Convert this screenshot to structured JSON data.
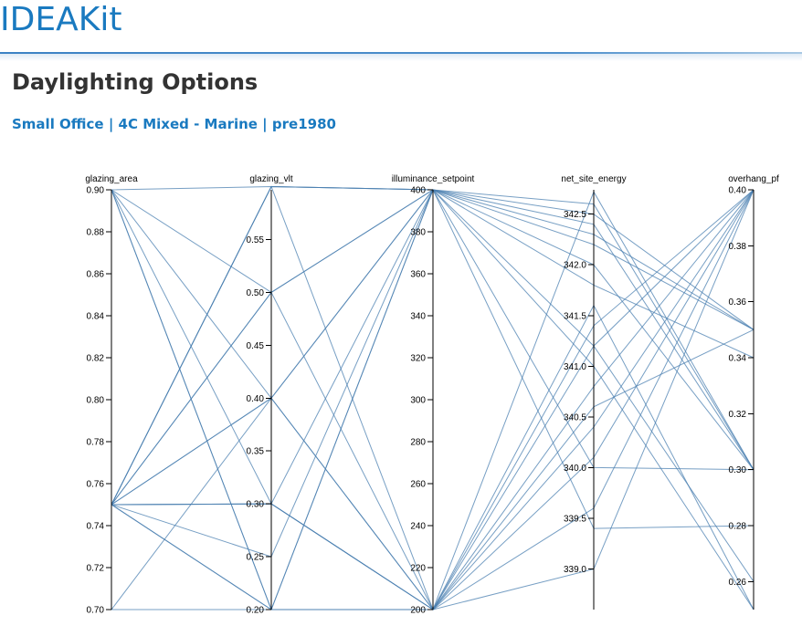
{
  "header": {
    "brand": "IDEAKit"
  },
  "page": {
    "title": "Daylighting Options",
    "subtitle": "Small Office | 4C Mixed - Marine | pre1980"
  },
  "colors": {
    "brand": "#1a7ac0",
    "line": "#4a7fb0",
    "title": "#333333"
  },
  "chart_data": {
    "type": "parallel_coordinates",
    "dimensions": [
      {
        "name": "glazing_area",
        "domain": [
          0.7,
          0.9
        ],
        "ticks": [
          {
            "v": 0.7,
            "label": "0.70"
          },
          {
            "v": 0.72,
            "label": "0.72"
          },
          {
            "v": 0.74,
            "label": "0.74"
          },
          {
            "v": 0.76,
            "label": "0.76"
          },
          {
            "v": 0.78,
            "label": "0.78"
          },
          {
            "v": 0.8,
            "label": "0.80"
          },
          {
            "v": 0.82,
            "label": "0.82"
          },
          {
            "v": 0.84,
            "label": "0.84"
          },
          {
            "v": 0.86,
            "label": "0.86"
          },
          {
            "v": 0.88,
            "label": "0.88"
          },
          {
            "v": 0.9,
            "label": "0.90"
          }
        ]
      },
      {
        "name": "glazing_vlt",
        "domain": [
          0.2,
          0.597
        ],
        "ticks": [
          {
            "v": 0.2,
            "label": "0.20"
          },
          {
            "v": 0.25,
            "label": "0.25"
          },
          {
            "v": 0.3,
            "label": "0.30"
          },
          {
            "v": 0.35,
            "label": "0.35"
          },
          {
            "v": 0.4,
            "label": "0.40"
          },
          {
            "v": 0.45,
            "label": "0.45"
          },
          {
            "v": 0.5,
            "label": "0.50"
          },
          {
            "v": 0.55,
            "label": "0.55"
          }
        ]
      },
      {
        "name": "illuminance_setpoint",
        "domain": [
          200,
          400
        ],
        "ticks": [
          {
            "v": 200,
            "label": "200"
          },
          {
            "v": 220,
            "label": "220"
          },
          {
            "v": 240,
            "label": "240"
          },
          {
            "v": 260,
            "label": "260"
          },
          {
            "v": 280,
            "label": "280"
          },
          {
            "v": 300,
            "label": "300"
          },
          {
            "v": 320,
            "label": "320"
          },
          {
            "v": 340,
            "label": "340"
          },
          {
            "v": 360,
            "label": "360"
          },
          {
            "v": 380,
            "label": "380"
          },
          {
            "v": 400,
            "label": "400"
          }
        ]
      },
      {
        "name": "net_site_energy",
        "domain": [
          338.6,
          342.74
        ],
        "ticks": [
          {
            "v": 339.0,
            "label": "339.0"
          },
          {
            "v": 339.5,
            "label": "339.5"
          },
          {
            "v": 340.0,
            "label": "340.0"
          },
          {
            "v": 340.5,
            "label": "340.5"
          },
          {
            "v": 341.0,
            "label": "341.0"
          },
          {
            "v": 341.5,
            "label": "341.5"
          },
          {
            "v": 342.0,
            "label": "342.0"
          },
          {
            "v": 342.5,
            "label": "342.5"
          }
        ]
      },
      {
        "name": "overhang_pf",
        "domain": [
          0.25,
          0.4
        ],
        "ticks": [
          {
            "v": 0.26,
            "label": "0.26"
          },
          {
            "v": 0.28,
            "label": "0.28"
          },
          {
            "v": 0.3,
            "label": "0.30"
          },
          {
            "v": 0.32,
            "label": "0.32"
          },
          {
            "v": 0.34,
            "label": "0.34"
          },
          {
            "v": 0.36,
            "label": "0.36"
          },
          {
            "v": 0.38,
            "label": "0.38"
          },
          {
            "v": 0.4,
            "label": "0.40"
          }
        ]
      }
    ],
    "records": [
      [
        0.9,
        0.3,
        200,
        342.72,
        0.3
      ],
      [
        0.9,
        0.2,
        200,
        341.6,
        0.25
      ],
      [
        0.9,
        0.6,
        400,
        342.5,
        0.35
      ],
      [
        0.75,
        0.2,
        200,
        341.2,
        0.4
      ],
      [
        0.75,
        0.25,
        400,
        342.6,
        0.3
      ],
      [
        0.75,
        0.3,
        200,
        340.8,
        0.4
      ],
      [
        0.75,
        0.4,
        400,
        342.3,
        0.35
      ],
      [
        0.75,
        0.5,
        200,
        340.4,
        0.4
      ],
      [
        0.75,
        0.6,
        400,
        341.0,
        0.25
      ],
      [
        0.75,
        0.2,
        400,
        342.4,
        0.3
      ],
      [
        0.75,
        0.6,
        200,
        340.1,
        0.4
      ],
      [
        0.75,
        0.3,
        400,
        341.8,
        0.34
      ],
      [
        0.7,
        0.4,
        200,
        339.6,
        0.4
      ],
      [
        0.7,
        0.2,
        400,
        342.2,
        0.35
      ],
      [
        0.9,
        0.4,
        200,
        341.4,
        0.4
      ],
      [
        0.9,
        0.5,
        400,
        341.2,
        0.26
      ],
      [
        0.75,
        0.3,
        200,
        340.6,
        0.35
      ],
      [
        0.75,
        0.4,
        400,
        340.0,
        0.3
      ],
      [
        0.75,
        0.5,
        400,
        339.4,
        0.28
      ],
      [
        0.9,
        0.2,
        200,
        339.0,
        0.4
      ],
      [
        0.75,
        0.6,
        400,
        342.0,
        0.3
      ]
    ]
  }
}
